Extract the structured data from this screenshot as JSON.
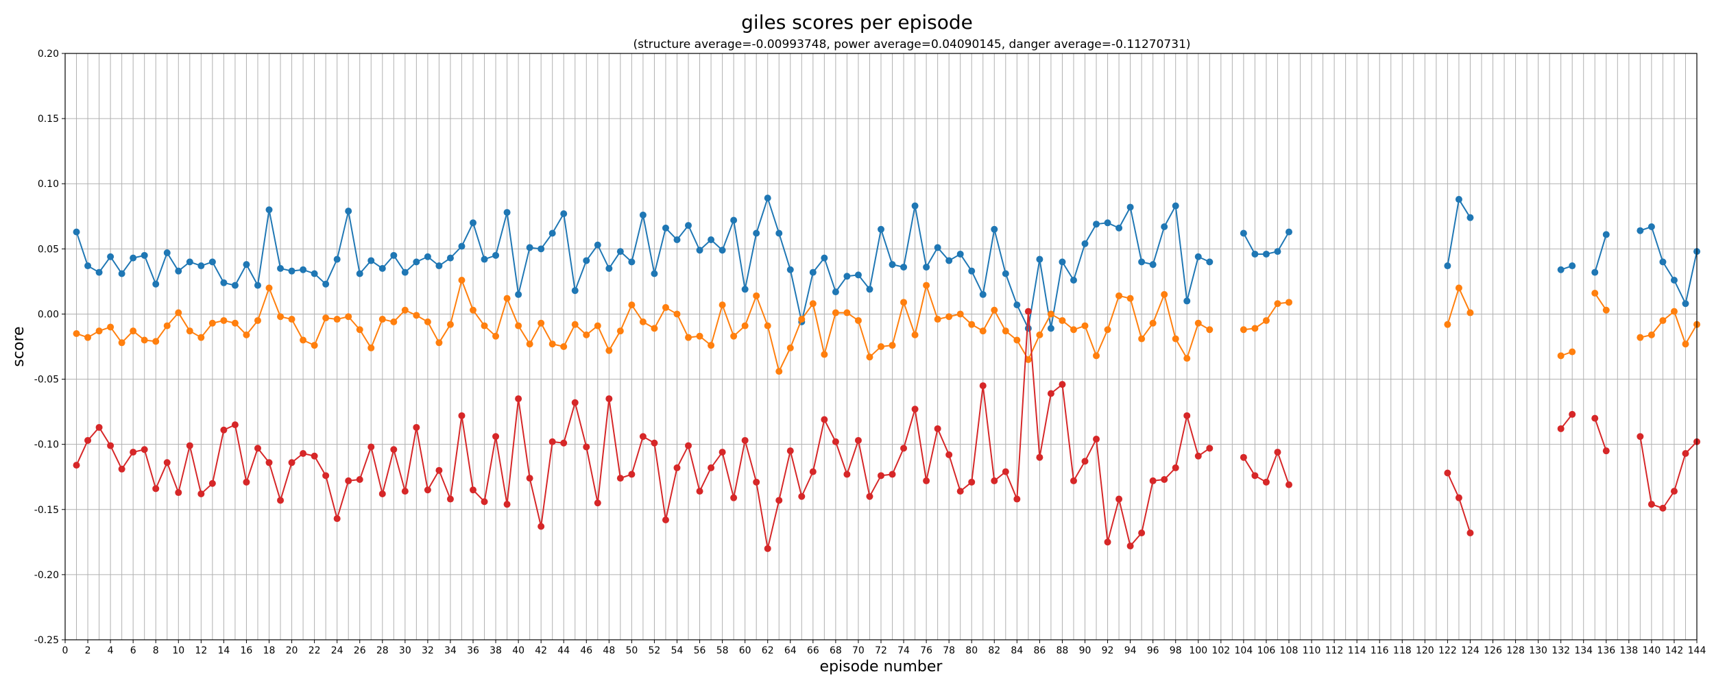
{
  "chart_data": {
    "type": "line",
    "title": "giles scores per episode",
    "subtitle": "(structure average=-0.00993748, power average=0.04090145, danger average=-0.11270731)",
    "xlabel": "episode number",
    "ylabel": "score",
    "xlim": [
      0,
      144
    ],
    "ylim": [
      -0.25,
      0.2
    ],
    "grid": true,
    "x_ticks": [
      0,
      2,
      4,
      6,
      8,
      10,
      12,
      14,
      16,
      18,
      20,
      22,
      24,
      26,
      28,
      30,
      32,
      34,
      36,
      38,
      40,
      42,
      44,
      46,
      48,
      50,
      52,
      54,
      56,
      58,
      60,
      62,
      64,
      66,
      68,
      70,
      72,
      74,
      76,
      78,
      80,
      82,
      84,
      86,
      88,
      90,
      92,
      94,
      96,
      98,
      100,
      102,
      104,
      106,
      108,
      110,
      112,
      114,
      116,
      118,
      120,
      122,
      124,
      126,
      128,
      130,
      132,
      134,
      136,
      138,
      140,
      142,
      144
    ],
    "y_ticks": [
      "-0.25",
      "-0.20",
      "-0.15",
      "-0.10",
      "-0.05",
      "0.00",
      "0.05",
      "0.10",
      "0.15",
      "0.20"
    ],
    "x": [
      1,
      2,
      3,
      4,
      5,
      6,
      7,
      8,
      9,
      10,
      11,
      12,
      13,
      14,
      15,
      16,
      17,
      18,
      19,
      20,
      21,
      22,
      23,
      24,
      25,
      26,
      27,
      28,
      29,
      30,
      31,
      32,
      33,
      34,
      35,
      36,
      37,
      38,
      39,
      40,
      41,
      42,
      43,
      44,
      45,
      46,
      47,
      48,
      49,
      50,
      51,
      52,
      53,
      54,
      55,
      56,
      57,
      58,
      59,
      60,
      61,
      62,
      63,
      64,
      65,
      66,
      67,
      68,
      69,
      70,
      71,
      72,
      73,
      74,
      75,
      76,
      77,
      78,
      79,
      80,
      81,
      82,
      83,
      84,
      85,
      86,
      87,
      88,
      89,
      90,
      91,
      92,
      93,
      94,
      95,
      96,
      97,
      98,
      99,
      100,
      101,
      104,
      105,
      106,
      107,
      108,
      122,
      123,
      124,
      132,
      133,
      135,
      136,
      139,
      140,
      141,
      142,
      143,
      144
    ],
    "series": [
      {
        "color": "#1f77b4",
        "values": [
          0.063,
          0.037,
          0.032,
          0.044,
          0.031,
          0.043,
          0.045,
          0.023,
          0.047,
          0.033,
          0.04,
          0.037,
          0.04,
          0.024,
          0.022,
          0.038,
          0.022,
          0.08,
          0.035,
          0.033,
          0.034,
          0.031,
          0.023,
          0.042,
          0.079,
          0.031,
          0.041,
          0.035,
          0.045,
          0.032,
          0.04,
          0.044,
          0.037,
          0.043,
          0.052,
          0.07,
          0.042,
          0.045,
          0.078,
          0.015,
          0.051,
          0.05,
          0.062,
          0.077,
          0.018,
          0.041,
          0.053,
          0.035,
          0.048,
          0.04,
          0.076,
          0.031,
          0.066,
          0.057,
          0.068,
          0.049,
          0.057,
          0.049,
          0.072,
          0.019,
          0.062,
          0.089,
          0.062,
          0.034,
          -0.006,
          0.032,
          0.043,
          0.017,
          0.029,
          0.03,
          0.019,
          0.065,
          0.038,
          0.036,
          0.083,
          0.036,
          0.051,
          0.041,
          0.046,
          0.033,
          0.015,
          0.065,
          0.031,
          0.007,
          -0.011,
          0.042,
          -0.011,
          0.04,
          0.026,
          0.054,
          0.069,
          0.07,
          0.066,
          0.082,
          0.04,
          0.038,
          0.067,
          0.083,
          0.01,
          0.044,
          0.04,
          0.062,
          0.046,
          0.046,
          0.048,
          0.063,
          0.037,
          0.088,
          0.074,
          0.034,
          0.037,
          0.032,
          0.061,
          0.064,
          0.067,
          0.04,
          0.026,
          0.008,
          0.048
        ]
      },
      {
        "color": "#ff7f0e",
        "values": [
          -0.015,
          -0.018,
          -0.013,
          -0.01,
          -0.022,
          -0.013,
          -0.02,
          -0.021,
          -0.009,
          0.001,
          -0.013,
          -0.018,
          -0.007,
          -0.005,
          -0.007,
          -0.016,
          -0.005,
          0.02,
          -0.002,
          -0.004,
          -0.02,
          -0.024,
          -0.003,
          -0.004,
          -0.002,
          -0.012,
          -0.026,
          -0.004,
          -0.006,
          0.003,
          -0.001,
          -0.006,
          -0.022,
          -0.008,
          0.026,
          0.003,
          -0.009,
          -0.017,
          0.012,
          -0.009,
          -0.023,
          -0.007,
          -0.023,
          -0.025,
          -0.008,
          -0.016,
          -0.009,
          -0.028,
          -0.013,
          0.007,
          -0.006,
          -0.011,
          0.005,
          0.0,
          -0.018,
          -0.017,
          -0.024,
          0.007,
          -0.017,
          -0.009,
          0.014,
          -0.009,
          -0.044,
          -0.026,
          -0.004,
          0.008,
          -0.031,
          0.001,
          0.001,
          -0.005,
          -0.033,
          -0.025,
          -0.024,
          0.009,
          -0.016,
          0.022,
          -0.004,
          -0.002,
          0.0,
          -0.008,
          -0.013,
          0.003,
          -0.013,
          -0.02,
          -0.035,
          -0.016,
          0.0,
          -0.005,
          -0.012,
          -0.009,
          -0.032,
          -0.012,
          0.014,
          0.012,
          -0.019,
          -0.007,
          0.015,
          -0.019,
          -0.034,
          -0.007,
          -0.012,
          -0.012,
          -0.011,
          -0.005,
          0.008,
          0.009,
          -0.008,
          0.02,
          0.001,
          -0.032,
          -0.029,
          0.016,
          0.003,
          -0.018,
          -0.016,
          -0.005,
          0.002,
          -0.023,
          -0.008
        ]
      },
      {
        "color": "#d62728",
        "values": [
          -0.116,
          -0.097,
          -0.087,
          -0.101,
          -0.119,
          -0.106,
          -0.104,
          -0.134,
          -0.114,
          -0.137,
          -0.101,
          -0.138,
          -0.13,
          -0.089,
          -0.085,
          -0.129,
          -0.103,
          -0.114,
          -0.143,
          -0.114,
          -0.107,
          -0.109,
          -0.124,
          -0.157,
          -0.128,
          -0.127,
          -0.102,
          -0.138,
          -0.104,
          -0.136,
          -0.087,
          -0.135,
          -0.12,
          -0.142,
          -0.078,
          -0.135,
          -0.144,
          -0.094,
          -0.146,
          -0.065,
          -0.126,
          -0.163,
          -0.098,
          -0.099,
          -0.068,
          -0.102,
          -0.145,
          -0.065,
          -0.126,
          -0.123,
          -0.094,
          -0.099,
          -0.158,
          -0.118,
          -0.101,
          -0.136,
          -0.118,
          -0.106,
          -0.141,
          -0.097,
          -0.129,
          -0.18,
          -0.143,
          -0.105,
          -0.14,
          -0.121,
          -0.081,
          -0.098,
          -0.123,
          -0.097,
          -0.14,
          -0.124,
          -0.123,
          -0.103,
          -0.073,
          -0.128,
          -0.088,
          -0.108,
          -0.136,
          -0.129,
          -0.055,
          -0.128,
          -0.121,
          -0.142,
          0.002,
          -0.11,
          -0.061,
          -0.054,
          -0.128,
          -0.113,
          -0.096,
          -0.175,
          -0.142,
          -0.178,
          -0.168,
          -0.128,
          -0.127,
          -0.118,
          -0.078,
          -0.109,
          -0.103,
          -0.11,
          -0.124,
          -0.129,
          -0.106,
          -0.131,
          -0.122,
          -0.141,
          -0.168,
          -0.088,
          -0.077,
          -0.08,
          -0.105,
          -0.094,
          -0.146,
          -0.149,
          -0.136,
          -0.107,
          -0.098
        ]
      }
    ]
  }
}
